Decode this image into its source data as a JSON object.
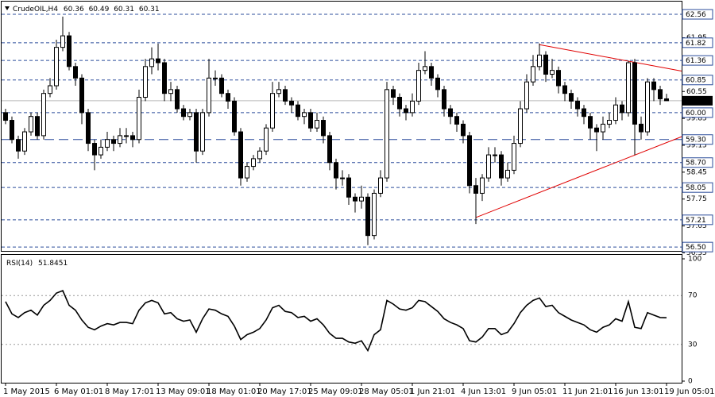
{
  "chart_data": {
    "type": "candlestick",
    "title": "CrudeOIL,H4",
    "x": [
      "1 May 2015",
      null,
      null,
      null,
      null,
      null,
      null,
      null,
      "6 May 01:01",
      null,
      null,
      null,
      null,
      null,
      null,
      null,
      "8 May 17:01",
      null,
      null,
      null,
      null,
      null,
      null,
      null,
      "13 May 09:01",
      null,
      null,
      null,
      null,
      null,
      null,
      null,
      "18 May 01:01",
      null,
      null,
      null,
      null,
      null,
      null,
      null,
      "20 May 17:01",
      null,
      null,
      null,
      null,
      null,
      null,
      null,
      "25 May 09:01",
      null,
      null,
      null,
      null,
      null,
      null,
      null,
      "28 May 05:01",
      null,
      null,
      null,
      null,
      null,
      null,
      null,
      "1 Jun 21:01",
      null,
      null,
      null,
      null,
      null,
      null,
      null,
      "4 Jun 13:01",
      null,
      null,
      null,
      null,
      null,
      null,
      null,
      "9 Jun 05:01",
      null,
      null,
      null,
      null,
      null,
      null,
      null,
      "11 Jun 21:01",
      null,
      null,
      null,
      null,
      null,
      null,
      null,
      "16 Jun 13:01",
      null,
      null,
      null,
      null,
      null,
      null,
      null,
      "19 Jun 05:01"
    ],
    "open": [
      60.0,
      59.8,
      59.3,
      59.0,
      59.5,
      59.9,
      59.4,
      60.5,
      60.7,
      61.7,
      62.0,
      61.2,
      60.9,
      60.0,
      59.2,
      58.9,
      59.1,
      59.3,
      59.2,
      59.4,
      59.4,
      59.3,
      60.4,
      61.2,
      61.4,
      61.3,
      60.5,
      60.6,
      60.1,
      59.9,
      60.0,
      59.0,
      60.0,
      60.9,
      60.9,
      60.5,
      60.3,
      59.5,
      58.3,
      58.6,
      58.8,
      59.0,
      59.6,
      60.5,
      60.6,
      60.3,
      60.2,
      59.9,
      60.0,
      59.6,
      59.8,
      59.4,
      58.7,
      58.3,
      58.3,
      57.8,
      57.7,
      57.8,
      56.8,
      57.9,
      58.3,
      60.6,
      60.4,
      60.1,
      60.0,
      60.3,
      61.1,
      61.2,
      60.9,
      60.6,
      60.1,
      59.9,
      59.7,
      59.4,
      58.1,
      57.9,
      58.3,
      58.9,
      58.9,
      58.3,
      58.5,
      59.2,
      60.1,
      60.8,
      61.2,
      61.5,
      61.0,
      61.1,
      60.7,
      60.5,
      60.3,
      60.1,
      59.9,
      59.6,
      59.5,
      59.7,
      59.8,
      60.2,
      60.0,
      61.3,
      59.7,
      59.5,
      60.8,
      60.6,
      60.36
    ],
    "high": [
      60.1,
      59.9,
      59.4,
      59.6,
      60.0,
      60.0,
      60.6,
      60.9,
      61.9,
      62.5,
      62.1,
      61.3,
      61.0,
      60.1,
      59.3,
      59.3,
      59.5,
      59.4,
      59.6,
      59.6,
      59.5,
      60.6,
      61.4,
      61.7,
      61.8,
      61.4,
      60.8,
      60.7,
      60.2,
      60.1,
      60.1,
      60.1,
      61.4,
      61.1,
      61.0,
      60.6,
      60.4,
      59.6,
      58.7,
      58.9,
      59.1,
      59.7,
      60.8,
      60.8,
      60.7,
      60.4,
      60.3,
      60.1,
      60.1,
      60.0,
      59.9,
      59.5,
      58.8,
      58.5,
      58.4,
      57.9,
      58.1,
      57.9,
      58.0,
      58.5,
      60.8,
      60.7,
      60.5,
      60.2,
      60.5,
      61.3,
      61.6,
      61.3,
      61.0,
      60.7,
      60.2,
      60.0,
      59.8,
      59.5,
      58.3,
      58.4,
      59.1,
      59.1,
      59.0,
      58.7,
      59.4,
      60.3,
      61.0,
      61.5,
      61.8,
      61.6,
      61.4,
      61.2,
      60.8,
      60.6,
      60.4,
      60.2,
      60.0,
      59.7,
      59.9,
      60.0,
      60.4,
      60.3,
      61.35,
      61.4,
      59.9,
      60.9,
      60.9,
      60.7,
      60.49
    ],
    "low": [
      59.7,
      59.2,
      58.8,
      58.9,
      59.4,
      59.3,
      59.3,
      60.4,
      60.6,
      61.6,
      61.1,
      60.7,
      59.7,
      59.0,
      58.5,
      58.8,
      59.0,
      59.0,
      59.1,
      59.2,
      59.1,
      59.2,
      60.3,
      61.0,
      61.1,
      60.3,
      60.3,
      60.0,
      59.8,
      59.8,
      58.7,
      58.9,
      59.9,
      60.7,
      60.4,
      60.1,
      59.4,
      58.1,
      58.2,
      58.5,
      58.7,
      58.9,
      59.5,
      60.4,
      60.2,
      60.0,
      59.8,
      59.7,
      59.5,
      59.5,
      59.2,
      58.5,
      58.0,
      58.1,
      57.6,
      57.4,
      57.5,
      56.55,
      56.7,
      57.8,
      58.2,
      60.2,
      59.9,
      59.8,
      59.9,
      60.2,
      61.0,
      60.7,
      60.4,
      59.9,
      59.7,
      59.5,
      59.2,
      57.9,
      57.1,
      57.7,
      58.2,
      58.7,
      58.1,
      58.2,
      58.4,
      59.1,
      60.0,
      60.7,
      61.1,
      60.8,
      60.9,
      60.5,
      60.3,
      60.1,
      59.9,
      59.7,
      59.3,
      59.0,
      59.3,
      59.6,
      59.7,
      59.8,
      59.9,
      58.9,
      59.3,
      59.4,
      60.3,
      60.2,
      60.31
    ],
    "close": [
      59.8,
      59.3,
      59.0,
      59.5,
      59.9,
      59.4,
      60.5,
      60.7,
      61.7,
      62.0,
      61.2,
      60.9,
      60.0,
      59.2,
      58.9,
      59.1,
      59.3,
      59.2,
      59.4,
      59.4,
      59.3,
      60.4,
      61.2,
      61.4,
      61.3,
      60.5,
      60.6,
      60.1,
      59.9,
      60.0,
      59.0,
      60.0,
      60.9,
      60.9,
      60.5,
      60.3,
      59.5,
      58.3,
      58.6,
      58.8,
      59.0,
      59.6,
      60.5,
      60.6,
      60.3,
      60.2,
      59.9,
      60.0,
      59.6,
      59.8,
      59.4,
      58.7,
      58.3,
      58.3,
      57.8,
      57.7,
      57.8,
      56.8,
      57.9,
      58.3,
      60.6,
      60.4,
      60.1,
      60.0,
      60.3,
      61.1,
      61.2,
      60.9,
      60.6,
      60.1,
      59.9,
      59.7,
      59.4,
      58.1,
      57.9,
      58.3,
      58.9,
      58.9,
      58.3,
      58.5,
      59.2,
      60.1,
      60.8,
      61.2,
      61.5,
      61.0,
      61.1,
      60.7,
      60.5,
      60.3,
      60.1,
      59.9,
      59.6,
      59.5,
      59.7,
      59.8,
      60.2,
      60.0,
      61.3,
      59.7,
      59.5,
      60.8,
      60.6,
      60.36,
      60.31
    ],
    "up_color": "#ffffff",
    "down_color": "#000000",
    "ylim": [
      56.4,
      62.85
    ],
    "yticks": [
      56.35,
      57.05,
      57.75,
      58.45,
      59.15,
      59.85,
      60.55,
      61.95
    ],
    "levels": [
      62.56,
      61.82,
      61.36,
      60.85,
      {
        "value": 60,
        "label": "60.00"
      },
      {
        "value": 58.7,
        "label": "58.70"
      },
      58.05,
      57.21,
      {
        "value": 56.5,
        "label": "56.50"
      }
    ],
    "key_level": {
      "value": 59.3,
      "label": "59.30"
    },
    "level_color": "#2b4c9b",
    "trendlines": [
      {
        "color": "#e00000",
        "points": [
          [
            84,
            61.77
          ],
          [
            98,
            61.34
          ]
        ]
      },
      {
        "color": "#e00000",
        "points": [
          [
            74,
            57.27
          ],
          [
            98,
            58.83
          ]
        ]
      }
    ],
    "rsi": {
      "type": "line",
      "name": "RSI(14)",
      "color": "#000000",
      "ylim": [
        0,
        100
      ],
      "yticks": [
        0,
        30,
        70,
        100
      ],
      "values": [
        65,
        55,
        52,
        56,
        58,
        54,
        62,
        66,
        72,
        74,
        62,
        58,
        50,
        44,
        42,
        45,
        47,
        46,
        48,
        48,
        47,
        58,
        64,
        66,
        64,
        55,
        56,
        51,
        49,
        50,
        40,
        51,
        59,
        58,
        55,
        53,
        45,
        34,
        38,
        40,
        43,
        50,
        60,
        62,
        57,
        56,
        52,
        53,
        49,
        51,
        46,
        39,
        35,
        35,
        32,
        31,
        33,
        25,
        38,
        42,
        66,
        63,
        59,
        58,
        60,
        66,
        65,
        61,
        57,
        51,
        48,
        46,
        43,
        33,
        32,
        36,
        43,
        43,
        38,
        40,
        47,
        56,
        62,
        66,
        68,
        61,
        62,
        56,
        53,
        50,
        48,
        46,
        42,
        40,
        44,
        46,
        51,
        49,
        65,
        44,
        43,
        56,
        54,
        52,
        51.8451
      ]
    }
  }
}
